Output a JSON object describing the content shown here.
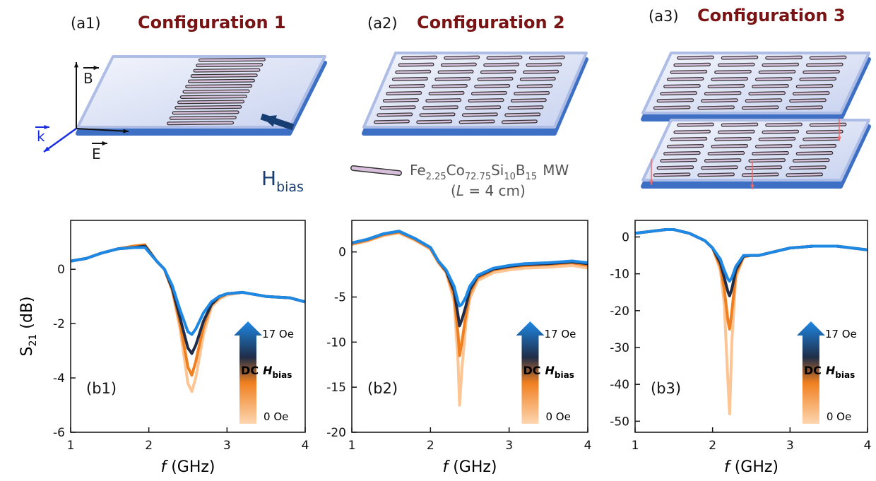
{
  "panels": [
    {
      "label": "(a1)",
      "title": "Configuration 1"
    },
    {
      "label": "(a2)",
      "title": "Configuration 2"
    },
    {
      "label": "(a3)",
      "title": "Configuration 3"
    }
  ],
  "axes_labels": {
    "B": "B",
    "E": "E",
    "k": "k",
    "H": "H",
    "H_sub": "bias"
  },
  "material": [
    "Fe",
    "2.25",
    "Co",
    "72.75",
    "Si",
    "10",
    "B",
    "15"
  ],
  "material_suffix": "MW",
  "length_label": [
    "(",
    "L",
    " = 4 cm)"
  ],
  "chart_data": [
    {
      "type": "line",
      "panel_label": "(b1)",
      "y_label": [
        "S",
        "21",
        " (dB)"
      ],
      "x_label": [
        "f",
        " (GHz)"
      ],
      "xlim": [
        1,
        4
      ],
      "xticks": [
        1,
        2,
        3,
        4
      ],
      "ylim": [
        -6,
        1.8
      ],
      "yticks": [
        -6,
        -4,
        -2,
        0
      ],
      "x": [
        1,
        1.2,
        1.4,
        1.6,
        1.8,
        1.95,
        2.1,
        2.2,
        2.3,
        2.4,
        2.5,
        2.55,
        2.6,
        2.7,
        2.8,
        2.9,
        3.0,
        3.2,
        3.5,
        3.8,
        4.0
      ],
      "series": [
        {
          "color": "#fdc494",
          "values": [
            0.3,
            0.4,
            0.6,
            0.75,
            0.85,
            0.9,
            0.3,
            0.0,
            -0.8,
            -2.2,
            -4.2,
            -4.5,
            -4.0,
            -2.4,
            -1.4,
            -1.1,
            -0.95,
            -0.85,
            -1.0,
            -1.05,
            -1.2
          ]
        },
        {
          "color": "#f07f20",
          "values": [
            0.3,
            0.4,
            0.6,
            0.75,
            0.85,
            0.9,
            0.3,
            0.0,
            -0.75,
            -2.0,
            -3.6,
            -3.9,
            -3.4,
            -2.1,
            -1.3,
            -1.05,
            -0.9,
            -0.85,
            -1.0,
            -1.05,
            -1.2
          ]
        },
        {
          "color": "#1f2d48",
          "values": [
            0.3,
            0.4,
            0.6,
            0.75,
            0.8,
            0.85,
            0.3,
            0.0,
            -0.7,
            -1.8,
            -2.9,
            -3.1,
            -2.8,
            -1.9,
            -1.3,
            -1.0,
            -0.9,
            -0.85,
            -1.0,
            -1.05,
            -1.2
          ]
        },
        {
          "color": "#1e88e5",
          "values": [
            0.3,
            0.4,
            0.6,
            0.75,
            0.8,
            0.8,
            0.3,
            0.0,
            -0.6,
            -1.5,
            -2.3,
            -2.4,
            -2.2,
            -1.6,
            -1.2,
            -1.0,
            -0.9,
            -0.85,
            -1.0,
            -1.05,
            -1.2
          ]
        }
      ],
      "colorbar": {
        "max_label": "17 Oe",
        "min_label": "0 Oe",
        "label": [
          "DC",
          "H",
          "bias"
        ]
      }
    },
    {
      "type": "line",
      "panel_label": "(b2)",
      "xlim": [
        1,
        4
      ],
      "xticks": [
        1,
        2,
        3,
        4
      ],
      "ylim": [
        -20,
        3.5
      ],
      "yticks": [
        -20,
        -15,
        -10,
        -5,
        0
      ],
      "x_label": [
        "f",
        " (GHz)"
      ],
      "x": [
        1,
        1.2,
        1.4,
        1.6,
        1.8,
        2.0,
        2.1,
        2.2,
        2.3,
        2.35,
        2.37,
        2.4,
        2.45,
        2.5,
        2.6,
        2.8,
        3.0,
        3.2,
        3.5,
        3.8,
        4.0
      ],
      "series": [
        {
          "color": "#fdc494",
          "values": [
            0.8,
            1.2,
            1.8,
            2.1,
            1.3,
            0.3,
            -1.2,
            -2.3,
            -5.5,
            -12,
            -17,
            -13,
            -8,
            -5.2,
            -3.2,
            -2.3,
            -2.0,
            -1.8,
            -1.7,
            -1.5,
            -1.8
          ]
        },
        {
          "color": "#f07f20",
          "values": [
            0.9,
            1.3,
            1.9,
            2.2,
            1.4,
            0.4,
            -1.1,
            -2.2,
            -4.8,
            -9,
            -11.5,
            -10,
            -7,
            -4.6,
            -2.9,
            -2.0,
            -1.7,
            -1.5,
            -1.4,
            -1.2,
            -1.5
          ]
        },
        {
          "color": "#1f2d48",
          "values": [
            1.0,
            1.4,
            2.0,
            2.3,
            1.5,
            0.5,
            -1.0,
            -2.1,
            -4.3,
            -7,
            -8.2,
            -7.5,
            -6,
            -4.2,
            -2.7,
            -1.9,
            -1.6,
            -1.4,
            -1.3,
            -1.1,
            -1.3
          ]
        },
        {
          "color": "#1e88e5",
          "values": [
            1.0,
            1.4,
            2.0,
            2.3,
            1.5,
            0.5,
            -1.0,
            -2.0,
            -3.8,
            -5.5,
            -6.0,
            -5.8,
            -5,
            -3.8,
            -2.6,
            -1.8,
            -1.5,
            -1.3,
            -1.2,
            -1.0,
            -1.2
          ]
        }
      ],
      "colorbar": {
        "max_label": "17 Oe",
        "min_label": "0 Oe",
        "label": [
          "DC",
          "H",
          "bias"
        ]
      }
    },
    {
      "type": "line",
      "panel_label": "(b3)",
      "xlim": [
        1,
        4
      ],
      "xticks": [
        1,
        2,
        3,
        4
      ],
      "ylim": [
        -53,
        4.5
      ],
      "yticks": [
        -50,
        -40,
        -30,
        -20,
        -10,
        0
      ],
      "x_label": [
        "f",
        " (GHz)"
      ],
      "x": [
        1,
        1.2,
        1.4,
        1.5,
        1.7,
        1.9,
        2.0,
        2.1,
        2.15,
        2.2,
        2.22,
        2.25,
        2.3,
        2.4,
        2.5,
        2.6,
        2.8,
        3.0,
        3.3,
        3.6,
        4.0
      ],
      "series": [
        {
          "color": "#fdc494",
          "values": [
            1,
            1.5,
            2,
            2,
            1,
            -1,
            -3,
            -9,
            -18,
            -40,
            -48,
            -28,
            -11,
            -5.5,
            -5,
            -5,
            -4,
            -3,
            -2.5,
            -2.5,
            -3.5
          ]
        },
        {
          "color": "#f07f20",
          "values": [
            1,
            1.5,
            2,
            2,
            1,
            -1,
            -3,
            -8,
            -14,
            -23,
            -25,
            -20,
            -10,
            -5.3,
            -5,
            -5,
            -4,
            -3,
            -2.5,
            -2.5,
            -3.5
          ]
        },
        {
          "color": "#1f2d48",
          "values": [
            1,
            1.5,
            2,
            2,
            1,
            -1,
            -3,
            -7,
            -11,
            -15,
            -16,
            -14,
            -9,
            -5.2,
            -5,
            -5,
            -4,
            -3,
            -2.5,
            -2.5,
            -3.5
          ]
        },
        {
          "color": "#1e88e5",
          "values": [
            1,
            1.5,
            2,
            2,
            1,
            -1,
            -3,
            -6,
            -9,
            -11.5,
            -12,
            -11,
            -8,
            -5,
            -5,
            -5,
            -4,
            -3,
            -2.5,
            -2.5,
            -3.5
          ]
        }
      ],
      "colorbar": {
        "max_label": "17 Oe",
        "min_label": "0 Oe",
        "label": [
          "DC",
          "H",
          "bias"
        ]
      }
    }
  ]
}
